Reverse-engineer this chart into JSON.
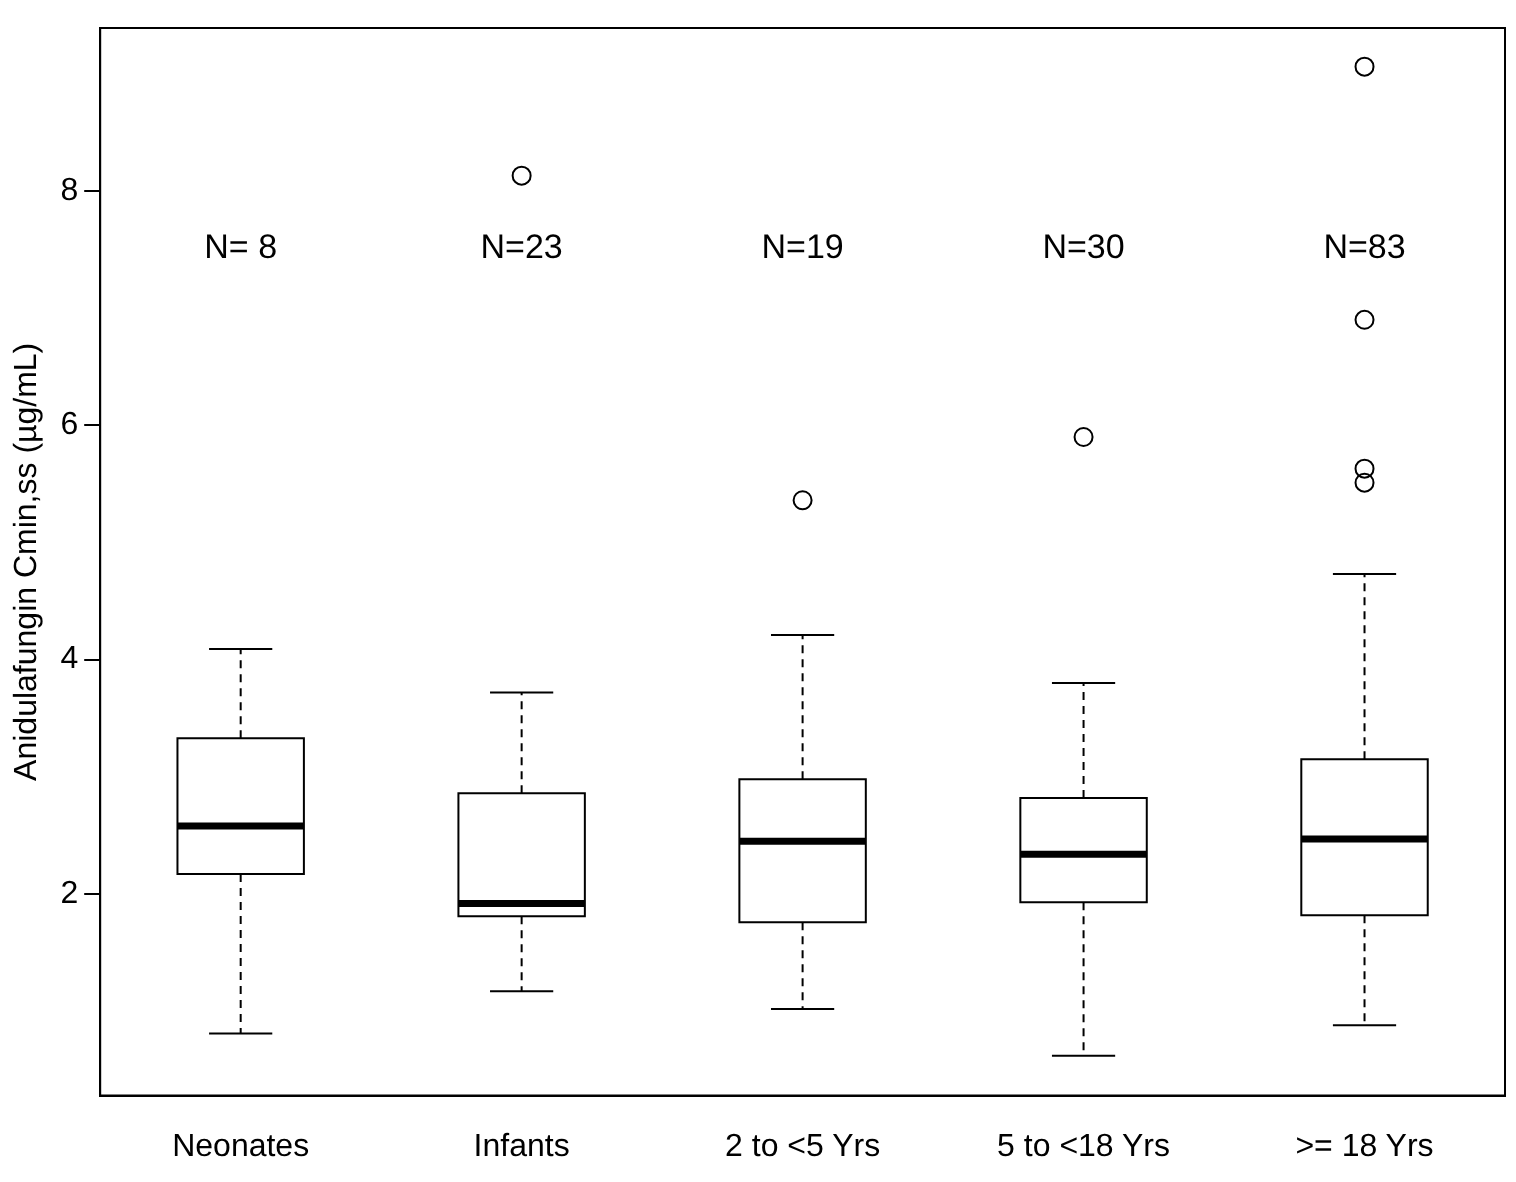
{
  "chart_data": {
    "type": "box",
    "ylabel": "Anidulafungin Cmin,ss (µg/mL)",
    "categories": [
      "Neonates",
      "Infants",
      "2 to <5 Yrs",
      "5 to <18 Yrs",
      ">= 18 Yrs"
    ],
    "boxes": [
      {
        "low": 0.81,
        "q1": 2.17,
        "median": 2.58,
        "q3": 3.33,
        "high": 4.09
      },
      {
        "low": 1.17,
        "q1": 1.81,
        "median": 1.92,
        "q3": 2.86,
        "high": 3.72,
        "outliers": [
          8.13
        ]
      },
      {
        "low": 1.02,
        "q1": 1.76,
        "median": 2.45,
        "q3": 2.98,
        "high": 4.21,
        "outliers": [
          5.36
        ]
      },
      {
        "low": 0.62,
        "q1": 1.93,
        "median": 2.34,
        "q3": 2.82,
        "high": 3.8,
        "outliers": [
          5.9
        ]
      },
      {
        "low": 0.88,
        "q1": 1.82,
        "median": 2.47,
        "q3": 3.15,
        "high": 4.73,
        "outliers": [
          9.06,
          6.9,
          5.63,
          5.51
        ]
      }
    ],
    "color": "#000000",
    "ylim": [
      0.28,
      9.39
    ],
    "yticks": [
      2,
      4,
      6,
      8
    ],
    "grid": false,
    "annotations": [
      "N= 8",
      "N=23",
      "N=19",
      "N=30",
      "N=83"
    ]
  }
}
